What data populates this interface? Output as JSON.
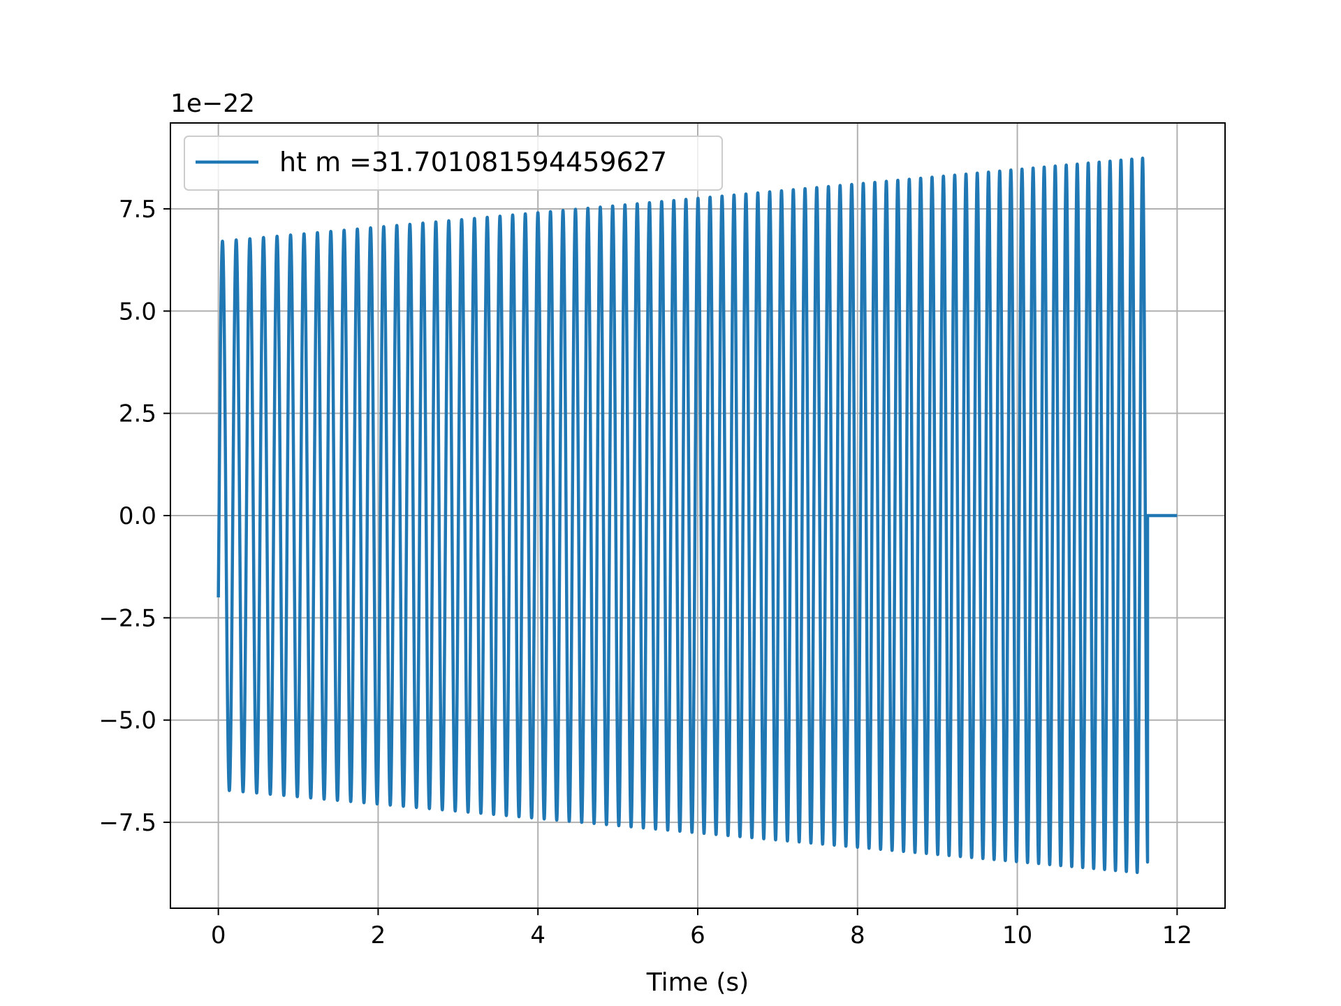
{
  "chart_data": {
    "type": "line",
    "title": "",
    "xlabel": "Time (s)",
    "ylabel": "",
    "y_offset_label": "1e−22",
    "y_scale_factor": 1e-22,
    "xlim": [
      -0.6,
      12.6
    ],
    "ylim": [
      -9.6,
      9.6
    ],
    "xticks": [
      0,
      2,
      4,
      6,
      8,
      10,
      12
    ],
    "xtick_labels": [
      "0",
      "2",
      "4",
      "6",
      "8",
      "10",
      "12"
    ],
    "yticks": [
      -7.5,
      -5.0,
      -2.5,
      0.0,
      2.5,
      5.0,
      7.5
    ],
    "ytick_labels": [
      "−7.5",
      "−5.0",
      "−2.5",
      "0.0",
      "2.5",
      "5.0",
      "7.5"
    ],
    "grid": true,
    "legend_position": "upper-left",
    "series": [
      {
        "name": "ht m =31.701081594459627",
        "color": "#1f77b4",
        "signal": {
          "kind": "chirp",
          "t_start": 0.0,
          "t_merger": 11.63,
          "t_end": 12.0,
          "cycles": 74,
          "initial_frequency_hz": 5.8,
          "final_frequency_hz": 7.4,
          "initial_amplitude": 6.7,
          "final_amplitude": 8.75,
          "initial_value": -2.0,
          "post_merger_value": 0.0
        }
      }
    ]
  }
}
